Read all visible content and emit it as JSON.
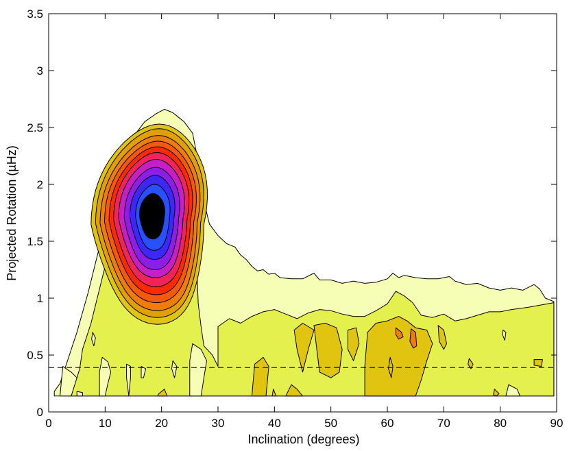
{
  "chart_data": {
    "type": "contour",
    "title": "",
    "xlabel": "Inclination (degrees)",
    "ylabel": "Projected Rotation (µHz)",
    "xlim": [
      0,
      90
    ],
    "ylim": [
      0,
      3.5
    ],
    "xticks": [
      0,
      10,
      20,
      30,
      40,
      50,
      60,
      70,
      80,
      90
    ],
    "yticks": [
      0,
      0.5,
      1,
      1.5,
      2,
      2.5,
      3,
      3.5
    ],
    "xtick_labels": [
      "0",
      "10",
      "20",
      "30",
      "40",
      "50",
      "60",
      "70",
      "80",
      "90"
    ],
    "ytick_labels": [
      "0",
      "0.5",
      "1",
      "1.5",
      "2",
      "2.5",
      "3",
      "3.5"
    ],
    "grid": false,
    "reference_line": {
      "style": "dashed",
      "y": 0.39
    },
    "data_extent": {
      "x": [
        1,
        89.5
      ],
      "y": [
        0.14,
        3.5
      ]
    },
    "peak": {
      "x": 18,
      "y": 1.72
    },
    "levels": [
      {
        "level": 1,
        "color": "#f6fdb4"
      },
      {
        "level": 2,
        "color": "#e4f04e"
      },
      {
        "level": 3,
        "color": "#e0c410"
      },
      {
        "level": 4,
        "color": "#e0a000"
      },
      {
        "level": 5,
        "color": "#ee7d0a"
      },
      {
        "level": 6,
        "color": "#f45a0a"
      },
      {
        "level": 7,
        "color": "#ff2a00"
      },
      {
        "level": 8,
        "color": "#f0245a"
      },
      {
        "level": 9,
        "color": "#c81ec8"
      },
      {
        "level": 10,
        "color": "#8c1ee6"
      },
      {
        "level": 11,
        "color": "#3c28ff"
      },
      {
        "level": 12,
        "color": "#2850ff"
      },
      {
        "level": 13,
        "color": "#000000"
      }
    ],
    "outer_contour": [
      [
        1,
        0.18
      ],
      [
        2,
        0.25
      ],
      [
        3,
        0.4
      ],
      [
        5,
        0.7
      ],
      [
        7,
        1.05
      ],
      [
        9,
        1.45
      ],
      [
        11,
        1.85
      ],
      [
        13,
        2.2
      ],
      [
        15,
        2.42
      ],
      [
        17,
        2.55
      ],
      [
        19,
        2.62
      ],
      [
        20.5,
        2.66
      ],
      [
        22,
        2.63
      ],
      [
        24,
        2.55
      ],
      [
        25.5,
        2.45
      ],
      [
        26.5,
        2.2
      ],
      [
        27.5,
        1.85
      ],
      [
        28.5,
        1.65
      ],
      [
        30,
        1.55
      ],
      [
        31.5,
        1.48
      ],
      [
        33,
        1.45
      ],
      [
        34,
        1.38
      ],
      [
        35,
        1.34
      ],
      [
        36,
        1.28
      ],
      [
        37,
        1.24
      ],
      [
        38,
        1.25
      ],
      [
        39,
        1.21
      ],
      [
        40,
        1.22
      ],
      [
        41,
        1.18
      ],
      [
        43,
        1.17
      ],
      [
        45,
        1.17
      ],
      [
        47,
        1.22
      ],
      [
        48,
        1.16
      ],
      [
        50,
        1.16
      ],
      [
        52,
        1.13
      ],
      [
        54,
        1.15
      ],
      [
        56,
        1.13
      ],
      [
        58,
        1.14
      ],
      [
        60,
        1.17
      ],
      [
        61,
        1.22
      ],
      [
        62,
        1.18
      ],
      [
        63,
        1.2
      ],
      [
        65,
        1.18
      ],
      [
        67,
        1.17
      ],
      [
        69,
        1.17
      ],
      [
        71,
        1.19
      ],
      [
        72,
        1.15
      ],
      [
        74,
        1.12
      ],
      [
        76,
        1.13
      ],
      [
        78,
        1.09
      ],
      [
        80,
        1.07
      ],
      [
        82,
        1.09
      ],
      [
        84,
        1.07
      ],
      [
        86,
        1.12
      ],
      [
        87,
        1.08
      ],
      [
        88,
        1.0
      ],
      [
        89.5,
        0.97
      ]
    ],
    "right_band_contour": [
      [
        44,
        0.82
      ],
      [
        46,
        0.87
      ],
      [
        48,
        0.9
      ],
      [
        50,
        0.89
      ],
      [
        52,
        0.86
      ],
      [
        54,
        0.84
      ],
      [
        56,
        0.84
      ],
      [
        58,
        0.89
      ],
      [
        60,
        0.95
      ],
      [
        61.5,
        1.06
      ],
      [
        63,
        1.02
      ],
      [
        64.5,
        0.96
      ],
      [
        66,
        0.85
      ],
      [
        68,
        0.83
      ],
      [
        70,
        0.86
      ],
      [
        72,
        0.8
      ],
      [
        74,
        0.82
      ],
      [
        76,
        0.85
      ],
      [
        78,
        0.88
      ],
      [
        80,
        0.88
      ],
      [
        82,
        0.9
      ],
      [
        85,
        0.92
      ],
      [
        89.5,
        0.96
      ]
    ],
    "mid_band_contour": [
      [
        30,
        0.75
      ],
      [
        32,
        0.82
      ],
      [
        34,
        0.78
      ],
      [
        36,
        0.84
      ],
      [
        38,
        0.88
      ],
      [
        40,
        0.9
      ],
      [
        42,
        0.86
      ],
      [
        44,
        0.82
      ]
    ],
    "rings": [
      {
        "cx": 17.5,
        "cy": 1.65,
        "rx": 10.0,
        "ry": 0.88,
        "top_skew": 0.35,
        "bottom_skew": -0.3
      },
      {
        "cx": 17.6,
        "cy": 1.66,
        "rx": 9.3,
        "ry": 0.83,
        "top_skew": 0.35,
        "bottom_skew": -0.3
      },
      {
        "cx": 17.7,
        "cy": 1.66,
        "rx": 8.6,
        "ry": 0.77,
        "top_skew": 0.34,
        "bottom_skew": -0.3
      },
      {
        "cx": 17.8,
        "cy": 1.67,
        "rx": 7.9,
        "ry": 0.71,
        "top_skew": 0.33,
        "bottom_skew": -0.28
      },
      {
        "cx": 17.9,
        "cy": 1.68,
        "rx": 7.2,
        "ry": 0.65,
        "top_skew": 0.32,
        "bottom_skew": -0.27
      },
      {
        "cx": 18.0,
        "cy": 1.69,
        "rx": 6.5,
        "ry": 0.59,
        "top_skew": 0.3,
        "bottom_skew": -0.26
      },
      {
        "cx": 18.1,
        "cy": 1.7,
        "rx": 5.7,
        "ry": 0.52,
        "top_skew": 0.28,
        "bottom_skew": -0.24
      },
      {
        "cx": 18.2,
        "cy": 1.7,
        "rx": 4.8,
        "ry": 0.45,
        "top_skew": 0.26,
        "bottom_skew": -0.22
      },
      {
        "cx": 18.3,
        "cy": 1.71,
        "rx": 3.9,
        "ry": 0.37,
        "top_skew": 0.24,
        "bottom_skew": -0.2
      },
      {
        "cx": 18.4,
        "cy": 1.71,
        "rx": 3.0,
        "ry": 0.29,
        "top_skew": 0.2,
        "bottom_skew": -0.17
      },
      {
        "cx": 18.3,
        "cy": 1.72,
        "rx": 2.2,
        "ry": 0.2,
        "top_skew": 0.15,
        "bottom_skew": -0.12
      }
    ],
    "patches": [
      {
        "level": 3,
        "points": [
          [
            43.5,
            0.72
          ],
          [
            45,
            0.78
          ],
          [
            47,
            0.72
          ],
          [
            46,
            0.55
          ],
          [
            45,
            0.35
          ],
          [
            44,
            0.55
          ]
        ]
      },
      {
        "level": 3,
        "points": [
          [
            47,
            0.76
          ],
          [
            49,
            0.78
          ],
          [
            51,
            0.74
          ],
          [
            52,
            0.55
          ],
          [
            51.5,
            0.35
          ],
          [
            50,
            0.3
          ],
          [
            48,
            0.35
          ],
          [
            47.5,
            0.55
          ]
        ]
      },
      {
        "level": 3,
        "points": [
          [
            53,
            0.72
          ],
          [
            54.5,
            0.74
          ],
          [
            55,
            0.6
          ],
          [
            54,
            0.45
          ],
          [
            53,
            0.55
          ]
        ]
      },
      {
        "level": 3,
        "points": [
          [
            56.5,
            0.7
          ],
          [
            58,
            0.78
          ],
          [
            60,
            0.8
          ],
          [
            62,
            0.84
          ],
          [
            63.5,
            0.8
          ],
          [
            65,
            0.74
          ],
          [
            67,
            0.72
          ],
          [
            68,
            0.6
          ],
          [
            67,
            0.45
          ],
          [
            66,
            0.28
          ],
          [
            65,
            0.14
          ],
          [
            56,
            0.14
          ],
          [
            56,
            0.4
          ]
        ]
      },
      {
        "level": 5,
        "points": [
          [
            61.5,
            0.74
          ],
          [
            62.5,
            0.7
          ],
          [
            62.8,
            0.66
          ],
          [
            62,
            0.64
          ],
          [
            61.5,
            0.68
          ]
        ]
      },
      {
        "level": 5,
        "points": [
          [
            64.2,
            0.73
          ],
          [
            65,
            0.7
          ],
          [
            65.2,
            0.58
          ],
          [
            64.6,
            0.56
          ],
          [
            64,
            0.62
          ]
        ]
      },
      {
        "level": 3,
        "points": [
          [
            69,
            0.76
          ],
          [
            70,
            0.72
          ],
          [
            70.5,
            0.6
          ],
          [
            70,
            0.55
          ],
          [
            69.2,
            0.62
          ]
        ]
      },
      {
        "level": 3,
        "points": [
          [
            36.5,
            0.42
          ],
          [
            38,
            0.48
          ],
          [
            39,
            0.4
          ],
          [
            38.5,
            0.14
          ],
          [
            36,
            0.14
          ]
        ]
      },
      {
        "level": 3,
        "points": [
          [
            43,
            0.24
          ],
          [
            44,
            0.2
          ],
          [
            45,
            0.14
          ],
          [
            42,
            0.14
          ]
        ]
      },
      {
        "level": 3,
        "points": [
          [
            39.8,
            0.2
          ],
          [
            40.3,
            0.14
          ],
          [
            39.6,
            0.14
          ]
        ]
      },
      {
        "level": 3,
        "points": [
          [
            60.5,
            0.48
          ],
          [
            61,
            0.4
          ],
          [
            60.7,
            0.3
          ],
          [
            60.2,
            0.38
          ]
        ]
      },
      {
        "level": 3,
        "points": [
          [
            74.5,
            0.47
          ],
          [
            75.2,
            0.42
          ],
          [
            74.8,
            0.38
          ],
          [
            74.3,
            0.42
          ]
        ]
      },
      {
        "level": 3,
        "points": [
          [
            86,
            0.46
          ],
          [
            87.5,
            0.46
          ],
          [
            87.3,
            0.4
          ],
          [
            86,
            0.41
          ]
        ]
      },
      {
        "level": 3,
        "points": [
          [
            79,
            0.2
          ],
          [
            79.8,
            0.16
          ],
          [
            79.3,
            0.14
          ],
          [
            78.8,
            0.15
          ]
        ]
      },
      {
        "level": 1,
        "points": [
          [
            9.5,
            0.48
          ],
          [
            10.5,
            0.44
          ],
          [
            11,
            0.35
          ],
          [
            10.5,
            0.25
          ],
          [
            10,
            0.14
          ],
          [
            9,
            0.14
          ],
          [
            9,
            0.35
          ]
        ]
      },
      {
        "level": 1,
        "points": [
          [
            2.5,
            0.4
          ],
          [
            4,
            0.35
          ],
          [
            5,
            0.3
          ],
          [
            4,
            0.14
          ],
          [
            2,
            0.14
          ]
        ]
      },
      {
        "level": 1,
        "points": [
          [
            25.5,
            0.6
          ],
          [
            27,
            0.55
          ],
          [
            28,
            0.45
          ],
          [
            27.5,
            0.3
          ],
          [
            27,
            0.14
          ],
          [
            25,
            0.14
          ],
          [
            25,
            0.45
          ]
        ]
      },
      {
        "level": 1,
        "points": [
          [
            13.8,
            0.42
          ],
          [
            14.5,
            0.4
          ],
          [
            14.5,
            0.3
          ],
          [
            14.2,
            0.14
          ],
          [
            13.8,
            0.3
          ]
        ]
      },
      {
        "level": 1,
        "points": [
          [
            16.4,
            0.4
          ],
          [
            17.2,
            0.38
          ],
          [
            16.8,
            0.3
          ],
          [
            16.4,
            0.3
          ]
        ]
      },
      {
        "level": 1,
        "points": [
          [
            22,
            0.45
          ],
          [
            22.7,
            0.4
          ],
          [
            22.3,
            0.3
          ],
          [
            21.8,
            0.38
          ]
        ]
      },
      {
        "level": 1,
        "points": [
          [
            7.8,
            0.7
          ],
          [
            8.3,
            0.65
          ],
          [
            8.0,
            0.58
          ],
          [
            7.6,
            0.64
          ]
        ]
      },
      {
        "level": 1,
        "points": [
          [
            80.5,
            0.72
          ],
          [
            81,
            0.7
          ],
          [
            80.8,
            0.63
          ],
          [
            80.4,
            0.68
          ]
        ]
      },
      {
        "level": 1,
        "points": [
          [
            81.5,
            0.24
          ],
          [
            83,
            0.2
          ],
          [
            83.5,
            0.14
          ],
          [
            81,
            0.14
          ]
        ]
      },
      {
        "level": 1,
        "points": [
          [
            5,
            0.18
          ],
          [
            6,
            0.17
          ],
          [
            6,
            0.14
          ],
          [
            5,
            0.14
          ]
        ]
      },
      {
        "level": 3,
        "points": [
          [
            19.5,
            0.16
          ],
          [
            20.5,
            0.2
          ],
          [
            21,
            0.14
          ],
          [
            19.3,
            0.14
          ]
        ]
      }
    ]
  }
}
